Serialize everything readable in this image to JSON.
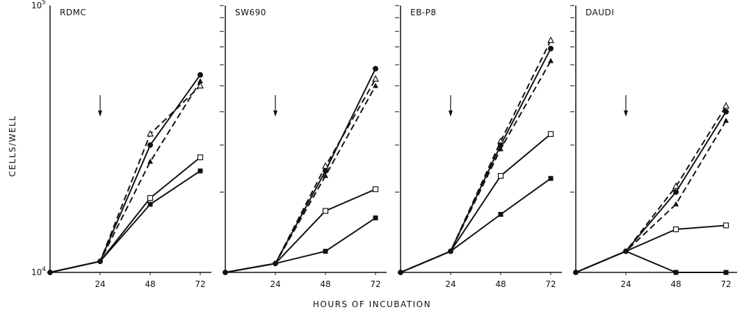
{
  "chart_data": [
    {
      "type": "line",
      "title": "RDMC",
      "ylabel": "CELLS/WELL",
      "x": [
        0,
        24,
        48,
        72
      ],
      "ylim": [
        10000,
        100000
      ],
      "yscale": "log",
      "y_ticklabels": [
        {
          "value": 100000,
          "base": "10",
          "exp": "5"
        },
        {
          "value": 10000,
          "base": "10",
          "exp": "4"
        }
      ],
      "x_ticklabels": [
        "24",
        "48",
        "72"
      ],
      "arrow_at_x": 24,
      "series": [
        {
          "marker": "open-triangle",
          "dash": true,
          "x": [
            0,
            24,
            48,
            72
          ],
          "values": [
            10000,
            11000,
            33000,
            50000
          ]
        },
        {
          "marker": "filled-circle",
          "dash": false,
          "x": [
            0,
            24,
            48,
            72
          ],
          "values": [
            10000,
            11000,
            30000,
            55000
          ]
        },
        {
          "marker": "filled-triangle",
          "dash": true,
          "x": [
            0,
            24,
            48,
            72
          ],
          "values": [
            10000,
            11000,
            26000,
            52000
          ]
        },
        {
          "marker": "open-square",
          "dash": false,
          "x": [
            0,
            24,
            48,
            72
          ],
          "values": [
            10000,
            11000,
            19000,
            27000
          ]
        },
        {
          "marker": "filled-square",
          "dash": false,
          "x": [
            0,
            24,
            48,
            72
          ],
          "values": [
            10000,
            11000,
            18000,
            24000
          ]
        }
      ]
    },
    {
      "type": "line",
      "title": "SW690",
      "x": [
        0,
        24,
        48,
        72
      ],
      "ylim": [
        10000,
        100000
      ],
      "yscale": "log",
      "x_ticklabels": [
        "24",
        "48",
        "72"
      ],
      "arrow_at_x": 24,
      "series": [
        {
          "marker": "filled-circle",
          "dash": false,
          "x": [
            0,
            24,
            48,
            72
          ],
          "values": [
            10000,
            10800,
            24000,
            58000
          ]
        },
        {
          "marker": "open-triangle",
          "dash": true,
          "x": [
            0,
            24,
            48,
            72
          ],
          "values": [
            10000,
            10800,
            25000,
            53000
          ]
        },
        {
          "marker": "filled-triangle",
          "dash": true,
          "x": [
            0,
            24,
            48,
            72
          ],
          "values": [
            10000,
            10800,
            23000,
            50000
          ]
        },
        {
          "marker": "open-square",
          "dash": false,
          "x": [
            0,
            24,
            48,
            72
          ],
          "values": [
            10000,
            10800,
            17000,
            20500
          ]
        },
        {
          "marker": "filled-square",
          "dash": false,
          "x": [
            0,
            24,
            48,
            72
          ],
          "values": [
            10000,
            10800,
            12000,
            16000
          ]
        }
      ]
    },
    {
      "type": "line",
      "title": "EB-P8",
      "x": [
        0,
        24,
        48,
        72
      ],
      "ylim": [
        10000,
        100000
      ],
      "yscale": "log",
      "x_ticklabels": [
        "24",
        "48",
        "72"
      ],
      "arrow_at_x": 24,
      "series": [
        {
          "marker": "open-triangle",
          "dash": true,
          "x": [
            0,
            24,
            48,
            72
          ],
          "values": [
            10000,
            12000,
            31000,
            74000
          ]
        },
        {
          "marker": "filled-circle",
          "dash": false,
          "x": [
            0,
            24,
            48,
            72
          ],
          "values": [
            10000,
            12000,
            30000,
            69000
          ]
        },
        {
          "marker": "filled-triangle",
          "dash": true,
          "x": [
            0,
            24,
            48,
            72
          ],
          "values": [
            10000,
            12000,
            29000,
            62000
          ]
        },
        {
          "marker": "open-square",
          "dash": false,
          "x": [
            0,
            24,
            48,
            72
          ],
          "values": [
            10000,
            12000,
            23000,
            33000
          ]
        },
        {
          "marker": "filled-square",
          "dash": false,
          "x": [
            0,
            24,
            48,
            72
          ],
          "values": [
            10000,
            12000,
            16500,
            22500
          ]
        }
      ]
    },
    {
      "type": "line",
      "title": "DAUDI",
      "xlabel": "HOURS OF INCUBATION",
      "x": [
        0,
        24,
        48,
        72
      ],
      "ylim": [
        10000,
        100000
      ],
      "yscale": "log",
      "x_ticklabels": [
        "24",
        "48",
        "72"
      ],
      "arrow_at_x": 24,
      "series": [
        {
          "marker": "open-triangle",
          "dash": true,
          "x": [
            0,
            24,
            48,
            72
          ],
          "values": [
            10000,
            12000,
            21000,
            42000
          ]
        },
        {
          "marker": "filled-circle",
          "dash": false,
          "x": [
            0,
            24,
            48,
            72
          ],
          "values": [
            10000,
            12000,
            20000,
            40000
          ]
        },
        {
          "marker": "filled-triangle",
          "dash": true,
          "x": [
            0,
            24,
            48,
            72
          ],
          "values": [
            10000,
            12000,
            18000,
            37000
          ]
        },
        {
          "marker": "open-square",
          "dash": false,
          "x": [
            0,
            24,
            48,
            72
          ],
          "values": [
            10000,
            12000,
            14500,
            15000
          ]
        },
        {
          "marker": "filled-square",
          "dash": false,
          "x": [
            0,
            24,
            48,
            72
          ],
          "values": [
            10000,
            12000,
            10000,
            10000
          ]
        }
      ]
    }
  ]
}
